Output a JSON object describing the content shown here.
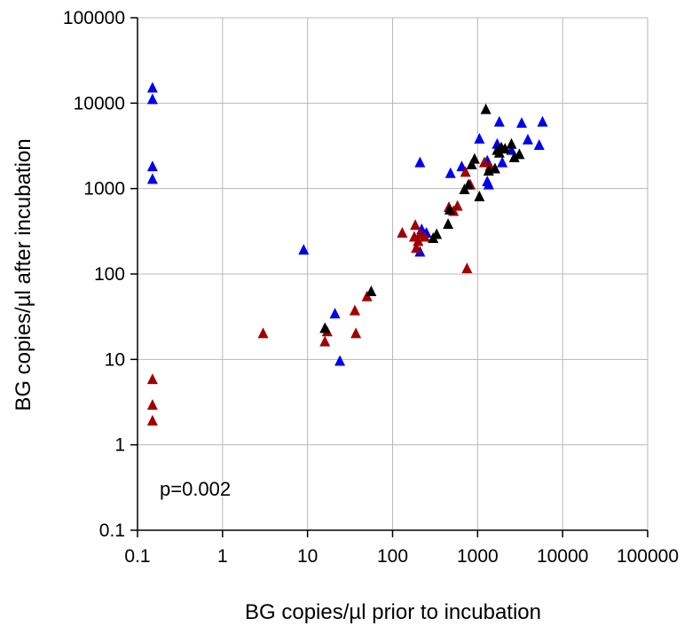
{
  "chart_data": {
    "type": "scatter",
    "xlabel": "BG copies/µl prior to incubation",
    "ylabel": "BG copies/µl after incubation",
    "x_scale": "log",
    "y_scale": "log",
    "xlim": [
      0.1,
      100000
    ],
    "ylim": [
      0.1,
      100000
    ],
    "x_ticks": [
      "0.1",
      "1",
      "10",
      "100",
      "1000",
      "10000",
      "100000"
    ],
    "y_ticks": [
      "0.1",
      "1",
      "10",
      "100",
      "1000",
      "10000",
      "100000"
    ],
    "grid": true,
    "annotation": "p=0.002",
    "marker": "triangle",
    "series": [
      {
        "color": "#0000ee",
        "points": [
          [
            0.15,
            15000
          ],
          [
            0.15,
            11000
          ],
          [
            0.15,
            1800
          ],
          [
            0.15,
            1280
          ],
          [
            9,
            190
          ],
          [
            21,
            34
          ],
          [
            24,
            9.5
          ],
          [
            210,
            2000
          ],
          [
            210,
            180
          ],
          [
            220,
            330
          ],
          [
            250,
            300
          ],
          [
            480,
            1500
          ],
          [
            650,
            1800
          ],
          [
            1050,
            3800
          ],
          [
            1300,
            2100
          ],
          [
            1300,
            1200
          ],
          [
            1350,
            1100
          ],
          [
            1700,
            3300
          ],
          [
            1800,
            6000
          ],
          [
            1950,
            2000
          ],
          [
            2500,
            2800
          ],
          [
            3300,
            5800
          ],
          [
            3900,
            3700
          ],
          [
            5300,
            3200
          ],
          [
            5800,
            6000
          ]
        ]
      },
      {
        "color": "#a00000",
        "points": [
          [
            0.15,
            5.8
          ],
          [
            0.15,
            2.9
          ],
          [
            0.15,
            1.9
          ],
          [
            3,
            20
          ],
          [
            16,
            16
          ],
          [
            17,
            21
          ],
          [
            36,
            37
          ],
          [
            37,
            20
          ],
          [
            50,
            54
          ],
          [
            130,
            300
          ],
          [
            180,
            270
          ],
          [
            185,
            370
          ],
          [
            190,
            200
          ],
          [
            200,
            240
          ],
          [
            210,
            290
          ],
          [
            240,
            270
          ],
          [
            460,
            600
          ],
          [
            520,
            540
          ],
          [
            580,
            620
          ],
          [
            720,
            1550
          ],
          [
            750,
            115
          ],
          [
            820,
            1100
          ],
          [
            1200,
            2000
          ],
          [
            1400,
            1800
          ]
        ]
      },
      {
        "color": "#000000",
        "points": [
          [
            16,
            23
          ],
          [
            56,
            62
          ],
          [
            300,
            260
          ],
          [
            330,
            290
          ],
          [
            450,
            380
          ],
          [
            470,
            560
          ],
          [
            700,
            970
          ],
          [
            780,
            1100
          ],
          [
            850,
            1900
          ],
          [
            920,
            2200
          ],
          [
            1050,
            800
          ],
          [
            1250,
            8400
          ],
          [
            1350,
            1600
          ],
          [
            1600,
            1700
          ],
          [
            1700,
            2800
          ],
          [
            1800,
            2600
          ],
          [
            1900,
            3000
          ],
          [
            2100,
            2900
          ],
          [
            2500,
            3300
          ],
          [
            2700,
            2300
          ],
          [
            3100,
            2500
          ]
        ]
      }
    ]
  }
}
